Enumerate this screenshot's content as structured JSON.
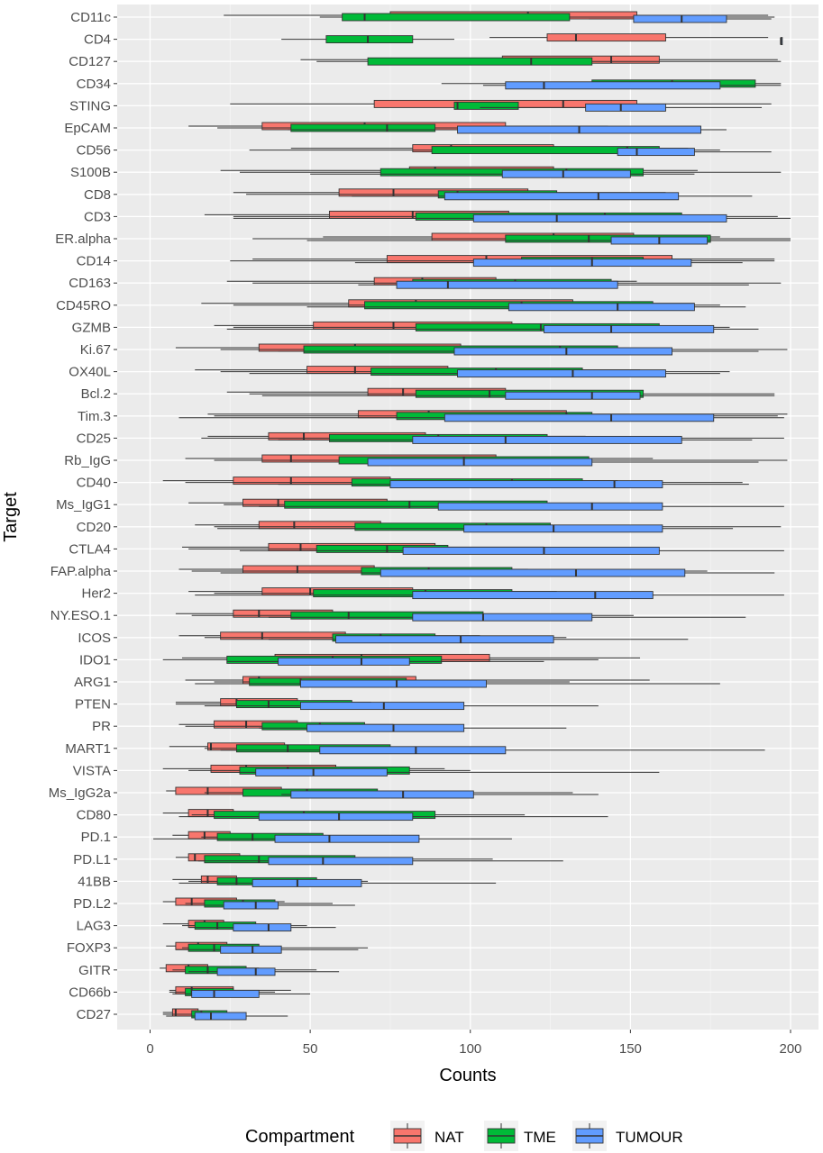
{
  "chart_data": {
    "type": "boxplot",
    "orientation": "horizontal",
    "xlabel": "Counts",
    "ylabel": "Target",
    "xlim": [
      -10,
      210
    ],
    "xticks": [
      0,
      50,
      100,
      150,
      200
    ],
    "grid": true,
    "legend": {
      "title": "Compartment",
      "position": "bottom",
      "entries": [
        {
          "name": "NAT",
          "color": "#F8766D"
        },
        {
          "name": "TME",
          "color": "#00BA38"
        },
        {
          "name": "TUMOUR",
          "color": "#619CFF"
        }
      ]
    },
    "categories": [
      "CD11c",
      "CD4",
      "CD127",
      "CD34",
      "STING",
      "EpCAM",
      "CD56",
      "S100B",
      "CD8",
      "CD3",
      "ER.alpha",
      "CD14",
      "CD163",
      "CD45RO",
      "GZMB",
      "Ki.67",
      "OX40L",
      "Bcl.2",
      "Tim.3",
      "CD25",
      "Rb_IgG",
      "CD40",
      "Ms_IgG1",
      "CD20",
      "CTLA4",
      "FAP.alpha",
      "Her2",
      "NY.ESO.1",
      "ICOS",
      "IDO1",
      "ARG1",
      "PTEN",
      "PR",
      "MART1",
      "VISTA",
      "Ms_IgG2a",
      "CD80",
      "PD.1",
      "PD.L1",
      "41BB",
      "PD.L2",
      "LAG3",
      "FOXP3",
      "GITR",
      "CD66b",
      "CD27"
    ],
    "series": [
      {
        "name": "NAT",
        "boxes": [
          [
            23,
            75,
            118,
            152,
            193
          ],
          [
            106,
            124,
            133,
            161,
            193
          ],
          [
            47,
            110,
            144,
            159,
            196
          ],
          [
            null,
            null,
            null,
            null,
            null
          ],
          [
            25,
            70,
            129,
            152,
            194
          ],
          [
            12,
            35,
            67,
            111,
            143
          ],
          [
            44,
            82,
            94,
            126,
            168
          ],
          [
            22,
            81,
            89,
            126,
            171
          ],
          [
            26,
            59,
            76,
            118,
            161
          ],
          [
            17,
            56,
            82,
            112,
            156
          ],
          [
            54,
            88,
            126,
            151,
            178
          ],
          [
            32,
            74,
            105,
            163,
            195
          ],
          [
            24,
            70,
            85,
            108,
            152
          ],
          [
            16,
            62,
            83,
            132,
            170
          ],
          [
            20,
            51,
            76,
            113,
            158
          ],
          [
            8,
            34,
            64,
            97,
            140
          ],
          [
            14,
            49,
            64,
            93,
            153
          ],
          [
            24,
            68,
            79,
            111,
            142
          ],
          [
            18,
            65,
            87,
            130,
            199
          ],
          [
            18,
            37,
            48,
            86,
            136
          ],
          [
            11,
            35,
            44,
            108,
            157
          ],
          [
            4,
            26,
            44,
            75,
            146
          ],
          [
            12,
            29,
            40,
            74,
            123
          ],
          [
            14,
            34,
            45,
            72,
            103
          ],
          [
            10,
            37,
            47,
            89,
            123
          ],
          [
            9,
            29,
            46,
            70,
            118
          ],
          [
            12,
            35,
            50,
            82,
            127
          ],
          [
            8,
            26,
            34,
            57,
            104
          ],
          [
            9,
            22,
            35,
            61,
            103
          ],
          [
            10,
            39,
            66,
            106,
            153
          ],
          [
            11,
            29,
            34,
            83,
            156
          ],
          [
            8,
            22,
            27,
            46,
            69
          ],
          [
            9,
            20,
            30,
            46,
            76
          ],
          [
            6,
            18,
            19,
            42,
            68
          ],
          [
            4,
            19,
            30,
            58,
            92
          ],
          [
            5,
            8,
            18,
            41,
            61
          ],
          [
            4,
            12,
            18,
            26,
            42
          ],
          [
            7,
            12,
            17,
            25,
            37
          ],
          [
            8,
            12,
            14,
            28,
            38
          ],
          [
            7,
            16,
            18,
            27,
            38
          ],
          [
            4,
            8,
            13,
            27,
            42
          ],
          [
            4,
            12,
            17,
            23,
            33
          ],
          [
            5,
            8,
            15,
            24,
            28
          ],
          [
            3,
            5,
            12,
            18,
            34
          ],
          [
            6,
            8,
            13,
            26,
            44
          ],
          [
            4,
            7,
            8,
            15,
            21
          ]
        ]
      },
      {
        "name": "TME",
        "boxes": [
          [
            53,
            60,
            67,
            131,
            195
          ],
          [
            41,
            55,
            68,
            82,
            95
          ],
          [
            52,
            68,
            119,
            138,
            197
          ],
          [
            91,
            138,
            163,
            189,
            197
          ],
          [
            null,
            95,
            96,
            115,
            null
          ],
          [
            21,
            44,
            74,
            89,
            133
          ],
          [
            31,
            88,
            149,
            159,
            178
          ],
          [
            28,
            72,
            130,
            154,
            197
          ],
          [
            30,
            90,
            96,
            127,
            155
          ],
          [
            26,
            83,
            142,
            166,
            196
          ],
          [
            32,
            111,
            137,
            175,
            200
          ],
          [
            25,
            116,
            138,
            154,
            195
          ],
          [
            32,
            82,
            114,
            144,
            197
          ],
          [
            26,
            67,
            116,
            157,
            178
          ],
          [
            26,
            83,
            122,
            159,
            181
          ],
          [
            22,
            48,
            128,
            146,
            199
          ],
          [
            22,
            69,
            108,
            135,
            181
          ],
          [
            31,
            83,
            106,
            154,
            195
          ],
          [
            20,
            77,
            130,
            138,
            196
          ],
          [
            16,
            56,
            90,
            124,
            198
          ],
          [
            20,
            59,
            98,
            137,
            199
          ],
          [
            11,
            63,
            113,
            135,
            185
          ],
          [
            23,
            42,
            81,
            124,
            155
          ],
          [
            20,
            64,
            105,
            125,
            197
          ],
          [
            12,
            52,
            74,
            93,
            126
          ],
          [
            13,
            66,
            87,
            113,
            174
          ],
          [
            20,
            51,
            86,
            113,
            157
          ],
          [
            13,
            44,
            62,
            104,
            151
          ],
          [
            17,
            57,
            72,
            89,
            130
          ],
          [
            4,
            24,
            57,
            91,
            140
          ],
          [
            20,
            31,
            47,
            80,
            131
          ],
          [
            8,
            27,
            37,
            63,
            85
          ],
          [
            11,
            35,
            53,
            67,
            75
          ],
          [
            17,
            27,
            43,
            75,
            82
          ],
          [
            12,
            28,
            43,
            81,
            100
          ],
          [
            17,
            29,
            49,
            71,
            132
          ],
          [
            13,
            20,
            48,
            89,
            117
          ],
          [
            16,
            21,
            32,
            54,
            79
          ],
          [
            17,
            17,
            34,
            64,
            107
          ],
          [
            12,
            21,
            27,
            52,
            68
          ],
          [
            11,
            17,
            29,
            39,
            57
          ],
          [
            10,
            14,
            21,
            33,
            49
          ],
          [
            10,
            12,
            20,
            34,
            68
          ],
          [
            7,
            11,
            18,
            30,
            52
          ],
          [
            6,
            11,
            13,
            26,
            39
          ],
          [
            4,
            13,
            16,
            24,
            30
          ]
        ]
      },
      {
        "name": "TUMOUR",
        "boxes": [
          [
            137,
            151,
            166,
            180,
            194
          ],
          [
            197,
            197,
            197,
            197,
            197
          ],
          [
            null,
            null,
            null,
            null,
            null
          ],
          [
            104,
            111,
            123,
            178,
            197
          ],
          [
            103,
            136,
            147,
            161,
            191
          ],
          [
            43,
            96,
            134,
            172,
            180
          ],
          [
            146,
            146,
            152,
            170,
            194
          ],
          [
            50,
            110,
            129,
            150,
            170
          ],
          [
            63,
            92,
            140,
            165,
            188
          ],
          [
            26,
            101,
            127,
            180,
            200
          ],
          [
            49,
            144,
            159,
            174,
            200
          ],
          [
            64,
            101,
            138,
            169,
            185
          ],
          [
            65,
            77,
            93,
            146,
            187
          ],
          [
            49,
            112,
            146,
            170,
            186
          ],
          [
            24,
            123,
            144,
            176,
            190
          ],
          [
            40,
            95,
            130,
            163,
            190
          ],
          [
            31,
            96,
            132,
            161,
            178
          ],
          [
            35,
            111,
            138,
            153,
            195
          ],
          [
            9,
            92,
            144,
            176,
            198
          ],
          [
            40,
            82,
            111,
            166,
            188
          ],
          [
            68,
            68,
            98,
            138,
            190
          ],
          [
            40,
            75,
            145,
            160,
            187
          ],
          [
            34,
            90,
            138,
            160,
            198
          ],
          [
            21,
            98,
            126,
            160,
            182
          ],
          [
            28,
            79,
            123,
            159,
            198
          ],
          [
            22,
            72,
            133,
            167,
            195
          ],
          [
            14,
            82,
            139,
            157,
            198
          ],
          [
            37,
            82,
            104,
            138,
            186
          ],
          [
            37,
            58,
            97,
            126,
            168
          ],
          [
            24,
            40,
            66,
            81,
            123
          ],
          [
            14,
            47,
            77,
            105,
            178
          ],
          [
            17,
            47,
            73,
            98,
            140
          ],
          [
            34,
            49,
            76,
            98,
            130
          ],
          [
            22,
            53,
            83,
            111,
            192
          ],
          [
            19,
            33,
            51,
            74,
            159
          ],
          [
            41,
            44,
            79,
            101,
            140
          ],
          [
            9,
            34,
            59,
            82,
            143
          ],
          [
            1,
            39,
            56,
            84,
            113
          ],
          [
            15,
            37,
            54,
            82,
            129
          ],
          [
            9,
            32,
            46,
            66,
            108
          ],
          [
            11,
            23,
            33,
            40,
            64
          ],
          [
            12,
            26,
            37,
            44,
            58
          ],
          [
            8,
            22,
            32,
            41,
            65
          ],
          [
            12,
            21,
            33,
            39,
            59
          ],
          [
            7,
            13,
            20,
            34,
            50
          ],
          [
            5,
            14,
            19,
            30,
            43
          ]
        ]
      }
    ]
  }
}
